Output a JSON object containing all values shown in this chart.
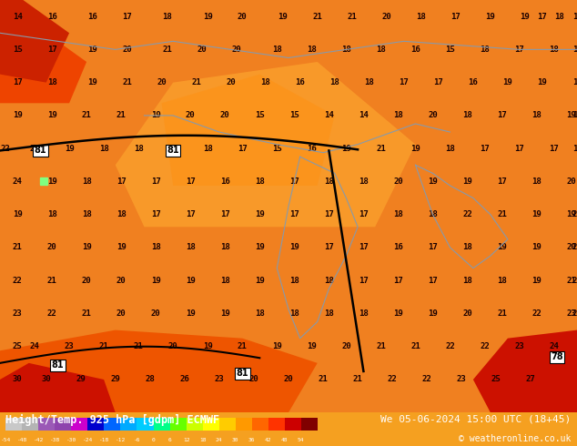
{
  "title_left": "Height/Temp. 925 hPa [gdpm] ECMWF",
  "title_right": "We 05-06-2024 15:00 UTC (18+45)",
  "copyright": "© weatheronline.co.uk",
  "colorbar_levels": [
    -54,
    -48,
    -42,
    -38,
    -30,
    -24,
    -18,
    -12,
    -6,
    0,
    6,
    12,
    18,
    24,
    30,
    36,
    42,
    48,
    54
  ],
  "colorbar_colors": [
    "#c8c8c8",
    "#b4b4b4",
    "#9b59b6",
    "#8e44ad",
    "#cc00cc",
    "#0000cd",
    "#0066ff",
    "#00aaff",
    "#00ccff",
    "#00ff88",
    "#66ff00",
    "#ccff00",
    "#ffff00",
    "#ffcc00",
    "#ff9900",
    "#ff6600",
    "#ff3300",
    "#cc0000",
    "#800000"
  ],
  "background_color": "#f5a020",
  "map_bg_colors": {
    "cool_patch": "#cc3300",
    "warm_center": "#ff8800",
    "hot_south": "#dd1100"
  },
  "font_color_numbers": "#1a0000",
  "font_color_labels": "#000000",
  "bottom_bar_color": "#1a0000",
  "bottom_bar_height": 0.075,
  "fig_width": 6.34,
  "fig_height": 4.9,
  "dpi": 100
}
